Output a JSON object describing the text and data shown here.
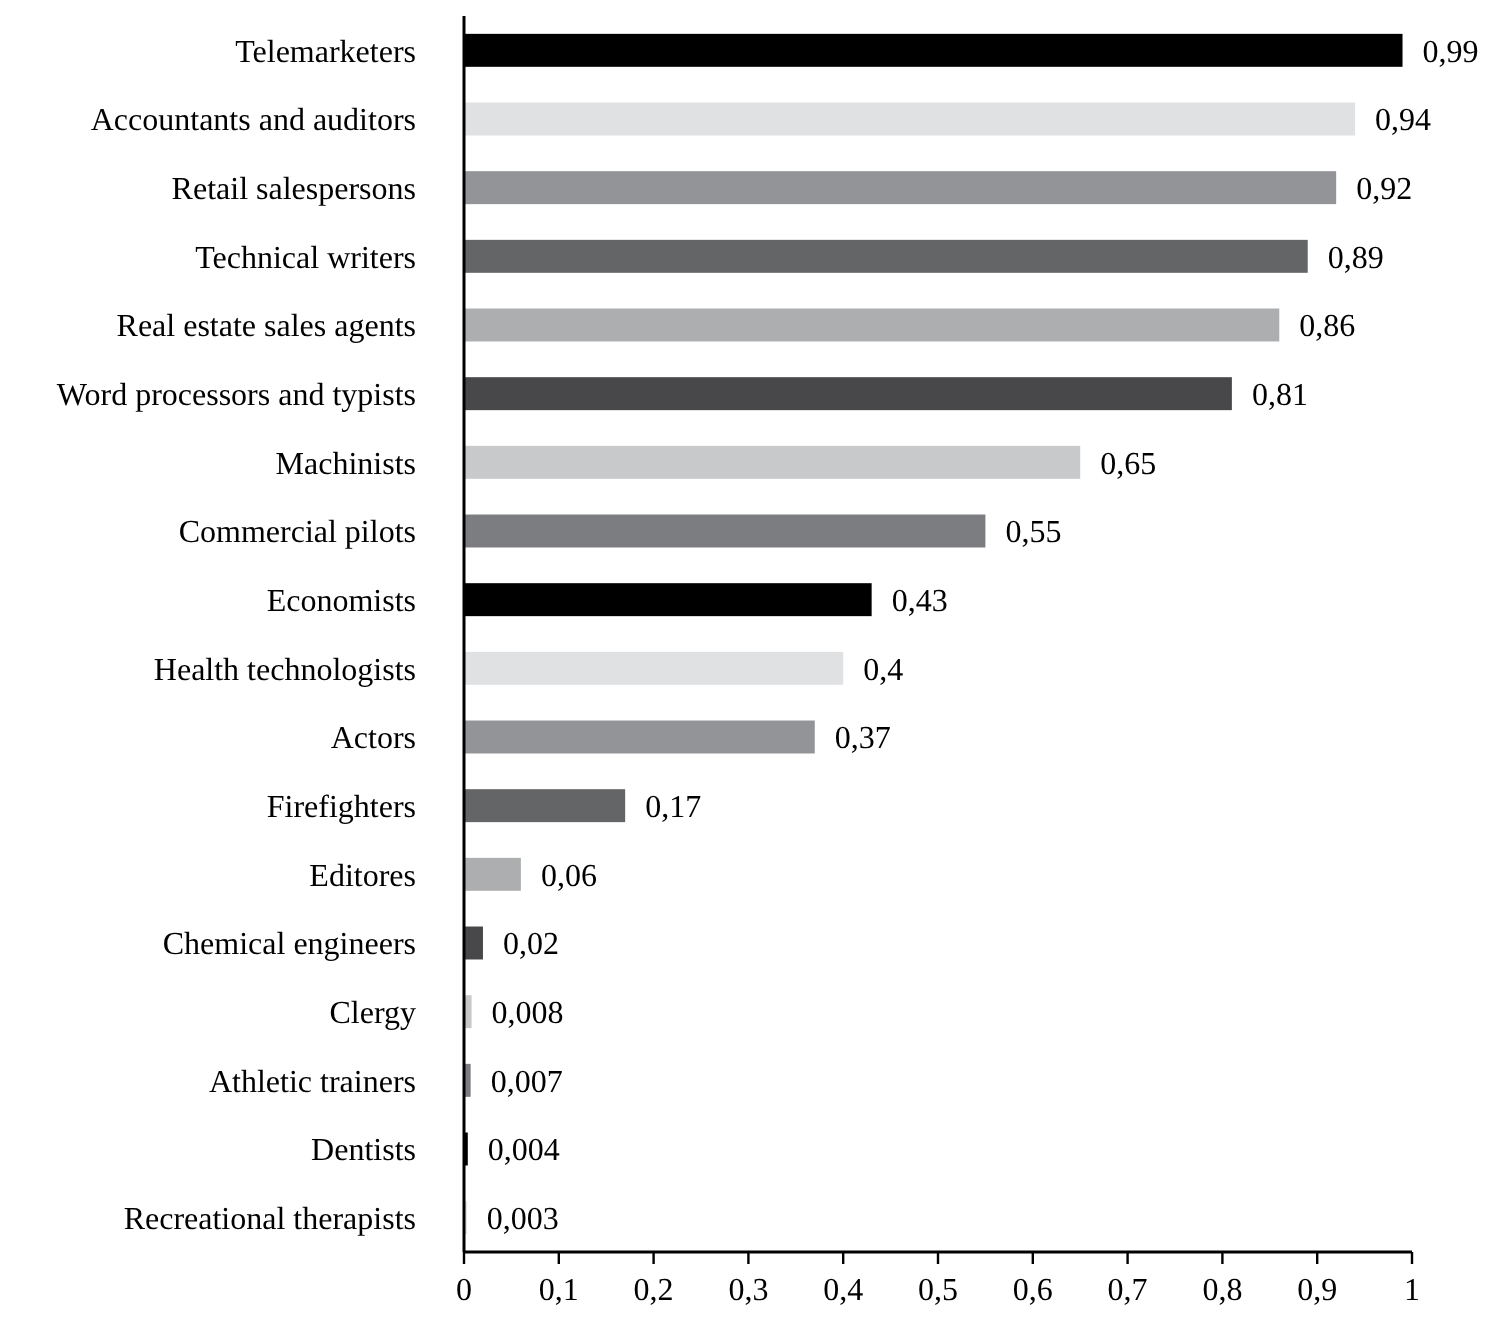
{
  "chart_data": {
    "type": "bar",
    "orientation": "horizontal",
    "categories": [
      "Telemarketers",
      "Accountants and auditors",
      "Retail salespersons",
      "Technical writers",
      "Real estate sales agents",
      "Word processors and typists",
      "Machinists",
      "Commercial pilots",
      "Economists",
      "Health technologists",
      "Actors",
      "Firefighters",
      "Editores",
      "Chemical engineers",
      "Clergy",
      "Athletic trainers",
      "Dentists",
      "Recreational therapists"
    ],
    "values": [
      0.99,
      0.94,
      0.92,
      0.89,
      0.86,
      0.81,
      0.65,
      0.55,
      0.43,
      0.4,
      0.37,
      0.17,
      0.06,
      0.02,
      0.008,
      0.007,
      0.004,
      0.003
    ],
    "value_labels": [
      "0,99",
      "0,94",
      "0,92",
      "0,89",
      "0,86",
      "0,81",
      "0,65",
      "0,55",
      "0,43",
      "0,4",
      "0,37",
      "0,17",
      "0,06",
      "0,02",
      "0,008",
      "0,007",
      "0,004",
      "0,003"
    ],
    "colors": [
      "#000000",
      "#e0e1e3",
      "#939497",
      "#646567",
      "#adaeb0",
      "#48484a",
      "#c8c9cb",
      "#7c7d80",
      "#000000",
      "#e0e1e3",
      "#939497",
      "#646567",
      "#adaeb0",
      "#48484a",
      "#c8c9cb",
      "#7c7d80",
      "#000000",
      "#e0e1e3"
    ],
    "xlim": [
      0,
      1
    ],
    "xticks": [
      0,
      {
        "value": 0.1,
        "label": "0,1"
      },
      {
        "value": 0.2,
        "label": "0,2"
      },
      {
        "value": 0.3,
        "label": "0,3"
      },
      {
        "value": 0.4,
        "label": "0,4"
      },
      {
        "value": 0.5,
        "label": "0,5"
      },
      {
        "value": 0.6,
        "label": "0,6"
      },
      {
        "value": 0.7,
        "label": "0,7"
      },
      {
        "value": 0.8,
        "label": "0,8"
      },
      {
        "value": 0.9,
        "label": "0,9"
      },
      1
    ],
    "grid": false
  }
}
